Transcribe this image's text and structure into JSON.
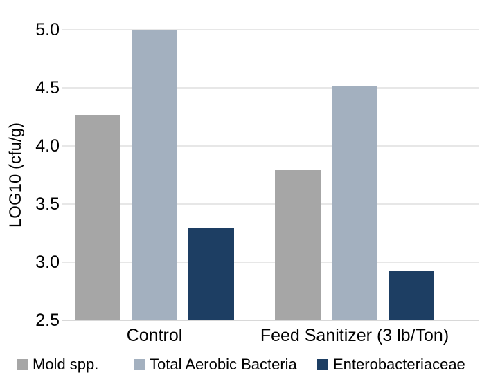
{
  "chart_data": {
    "type": "bar",
    "title": "",
    "xlabel": "",
    "ylabel": "LOG10 (cfu/g)",
    "ylim": [
      2.5,
      5.0
    ],
    "yticks": [
      5.0,
      4.5,
      4.0,
      3.5,
      3.0,
      2.5
    ],
    "grid": true,
    "legend_position": "bottom",
    "categories": [
      "Control",
      "Feed Sanitizer (3 lb/Ton)"
    ],
    "series": [
      {
        "name": "Mold spp.",
        "color": "#a6a6a6",
        "values": [
          4.27,
          3.8
        ]
      },
      {
        "name": "Total Aerobic Bacteria",
        "color": "#a3b0bf",
        "values": [
          5.0,
          4.51
        ]
      },
      {
        "name": "Enterobacteriaceae",
        "color": "#1d3e63",
        "values": [
          3.3,
          2.92
        ]
      }
    ]
  }
}
